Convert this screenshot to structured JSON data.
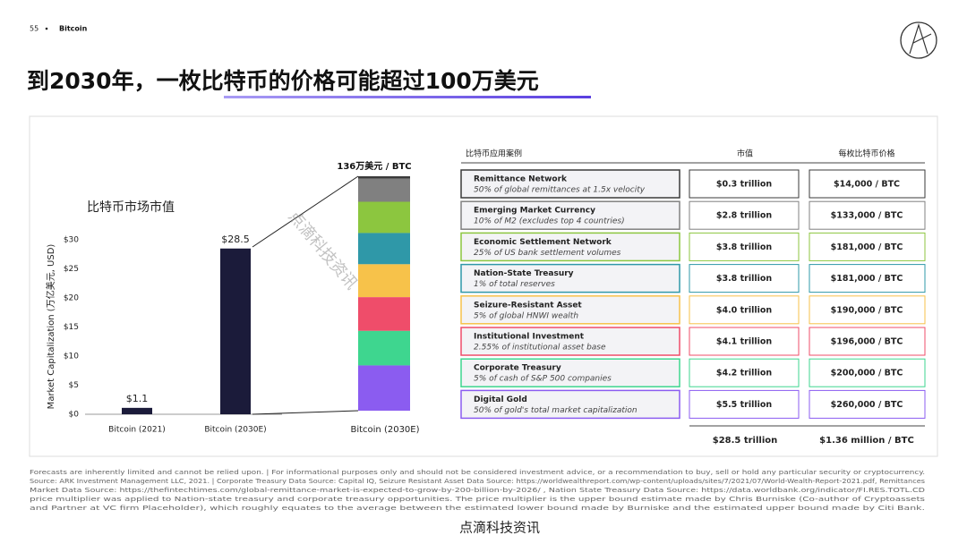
{
  "header": {
    "page_number": "55",
    "section": "Bitcoin",
    "title": "到2030年，一枚比特币的价格可能超过100万美元"
  },
  "chart_data": [
    {
      "type": "bar",
      "title": "比特币市场市值",
      "y_label": "Market Capitalization (万亿美元, USD)",
      "categories": [
        "Bitcoin (2021)",
        "Bitcoin (2030E)"
      ],
      "values": [
        1.1,
        28.5
      ],
      "value_labels": [
        "$1.1",
        "$28.5"
      ],
      "color": "#1b1b3a",
      "ylim": [
        0,
        30
      ],
      "yticks": [
        {
          "value": 0,
          "label": "$0"
        },
        {
          "value": 5,
          "label": "$5"
        },
        {
          "value": 10,
          "label": "$10"
        },
        {
          "value": 15,
          "label": "$15"
        },
        {
          "value": 20,
          "label": "$20"
        },
        {
          "value": 25,
          "label": "$25"
        },
        {
          "value": 30,
          "label": "$30"
        }
      ]
    },
    {
      "type": "stacked_bar",
      "category": "Bitcoin (2030E)",
      "annotation": "136万美元 / BTC",
      "ylim": [
        0,
        28.5
      ],
      "series": [
        {
          "color": "#3a3a3a",
          "values": [
            0.3
          ]
        },
        {
          "color": "#808080",
          "values": [
            2.8
          ]
        },
        {
          "color": "#8cc63f",
          "values": [
            3.8
          ]
        },
        {
          "color": "#2f98a8",
          "values": [
            3.8
          ]
        },
        {
          "color": "#f7c24a",
          "values": [
            4.0
          ]
        },
        {
          "color": "#ef4d6a",
          "values": [
            4.1
          ]
        },
        {
          "color": "#3ed68f",
          "values": [
            4.2
          ]
        },
        {
          "color": "#8b5cf0",
          "values": [
            5.5
          ]
        }
      ]
    }
  ],
  "table": {
    "headers": [
      "比特币应用案例",
      "市值",
      "每枚比特币价格"
    ],
    "rows": [
      [
        "Remittance Network",
        "50% of global remittances at 1.5x velocity",
        "$0.3 trillion",
        "$14,000 / BTC"
      ],
      [
        "Emerging Market Currency",
        "10% of M2 (excludes top 4 countries)",
        "$2.8 trillion",
        "$133,000 / BTC"
      ],
      [
        "Economic Settlement Network",
        "25% of US bank settlement volumes",
        "$3.8 trillion",
        "$181,000 / BTC"
      ],
      [
        "Nation-State Treasury",
        "1% of total reserves",
        "$3.8 trillion",
        "$181,000 / BTC"
      ],
      [
        "Seizure-Resistant Asset",
        "5% of global HNWI wealth",
        "$4.0 trillion",
        "$190,000 / BTC"
      ],
      [
        "Institutional Investment",
        "2.55% of institutional asset base",
        "$4.1 trillion",
        "$196,000 / BTC"
      ],
      [
        "Corporate Treasury",
        "5% of cash of S&P 500 companies",
        "$4.2 trillion",
        "$200,000 / BTC"
      ],
      [
        "Digital Gold",
        "50% of gold's total market capitalization",
        "$5.5 trillion",
        "$260,000 / BTC"
      ]
    ],
    "totals": [
      "$28.5 trillion",
      "$1.36 million / BTC"
    ]
  },
  "footer": {
    "lines": [
      "Forecasts are inherently limited and cannot be relied upon. | For informational purposes only and should not be considered investment advice, or a recommendation to buy, sell or hold any particular security or cryptocurrency.",
      "Source: ARK Investment Management LLC, 2021. | Corporate Treasury Data Source: Capital IQ, Seizure Resistant Asset Data Source: https://worldwealthreport.com/wp-content/uploads/sites/7/2021/07/World-Wealth-Report-2021.pdf, Remittances",
      "Market Data Source: https://thefintechtimes.com/global-remittance-market-is-expected-to-grow-by-200-billion-by-2026/ , Nation State Treasury Data Source: https://data.worldbank.org/indicator/FI.RES.TOTL.CD",
      "price multiplier was applied to Nation-state treasury and corporate treasury opportunities. The price multiplier is the upper bound estimate made by Chris Burniske (Co-author of Cryptoassets",
      "and Partner at VC firm Placeholder), which roughly equates to the average between the estimated lower bound made by Burniske and the estimated upper bound made by Citi Bank."
    ],
    "watermark": "点滴科技资讯",
    "caption": "点滴科技资讯"
  }
}
